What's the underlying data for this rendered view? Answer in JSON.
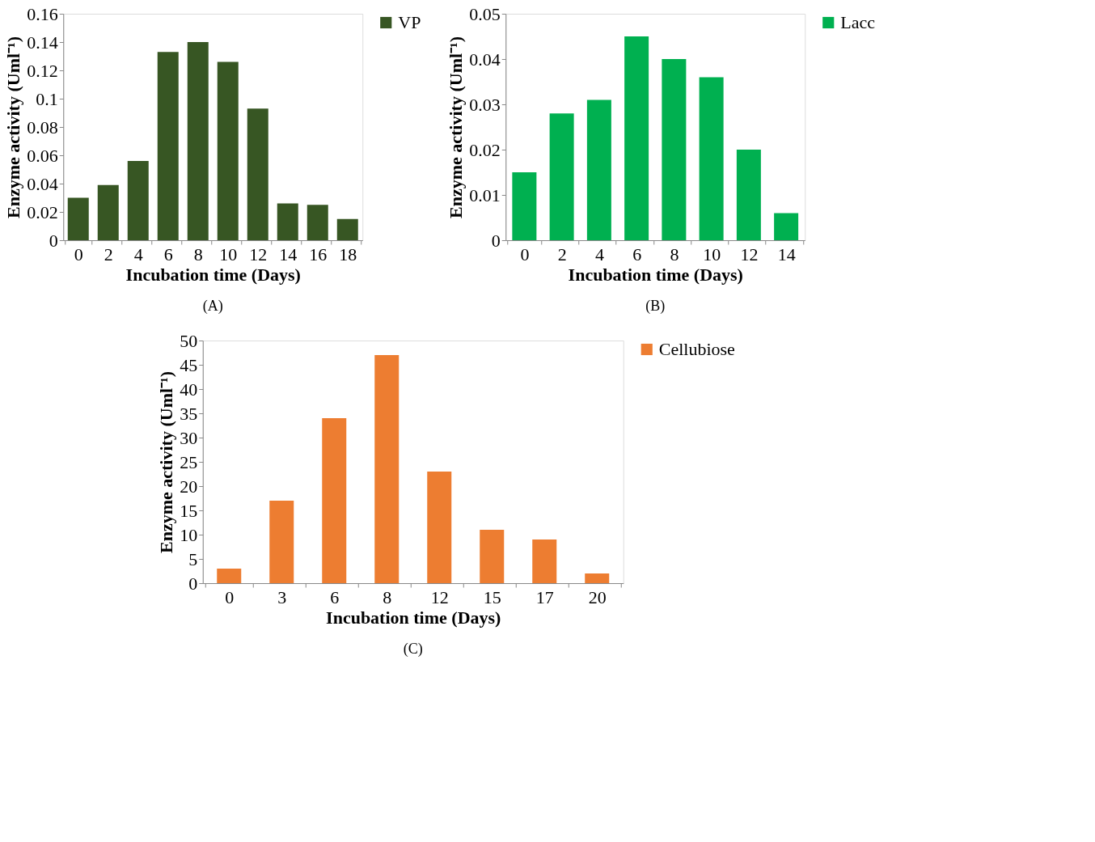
{
  "chart_data": [
    {
      "type": "bar",
      "categories": [
        "0",
        "2",
        "4",
        "6",
        "8",
        "10",
        "12",
        "14",
        "16",
        "18"
      ],
      "series": [
        {
          "name": "VP",
          "color": "#375623",
          "values": [
            0.03,
            0.039,
            0.056,
            0.133,
            0.14,
            0.126,
            0.093,
            0.026,
            0.025,
            0.015
          ]
        }
      ],
      "xlabel": "Incubation time (Days)",
      "ylabel": "Enzyme  activity (Uml⁻¹)",
      "ylim": [
        0,
        0.16
      ],
      "yticks": [
        0,
        0.02,
        0.04,
        0.06,
        0.08,
        0.1,
        0.12,
        0.14,
        0.16
      ],
      "grid": false,
      "legend": "right",
      "annotations": [
        "(A)"
      ]
    },
    {
      "type": "bar",
      "categories": [
        "0",
        "2",
        "4",
        "6",
        "8",
        "10",
        "12",
        "14"
      ],
      "series": [
        {
          "name": "Lacc",
          "color": "#00b050",
          "values": [
            0.015,
            0.028,
            0.031,
            0.045,
            0.04,
            0.036,
            0.02,
            0.006
          ]
        }
      ],
      "xlabel": "Incubation time (Days)",
      "ylabel": "Enzyme  activity (Uml⁻¹)",
      "ylim": [
        0,
        0.05
      ],
      "yticks": [
        0,
        0.01,
        0.02,
        0.03,
        0.04,
        0.05
      ],
      "grid": false,
      "legend": "right",
      "annotations": [
        "(B)"
      ]
    },
    {
      "type": "bar",
      "categories": [
        "0",
        "3",
        "6",
        "8",
        "12",
        "15",
        "17",
        "20"
      ],
      "series": [
        {
          "name": "Cellubiose",
          "color": "#ed7d31",
          "values": [
            3,
            17,
            34,
            47,
            23,
            11,
            9,
            2
          ]
        }
      ],
      "xlabel": "Incubation time (Days)",
      "ylabel": "Enzyme  activity (Uml⁻¹)",
      "ylim": [
        0,
        50
      ],
      "yticks": [
        0,
        5,
        10,
        15,
        20,
        25,
        30,
        35,
        40,
        45,
        50
      ],
      "grid": false,
      "legend": "right",
      "annotations": [
        "(C)"
      ]
    }
  ]
}
